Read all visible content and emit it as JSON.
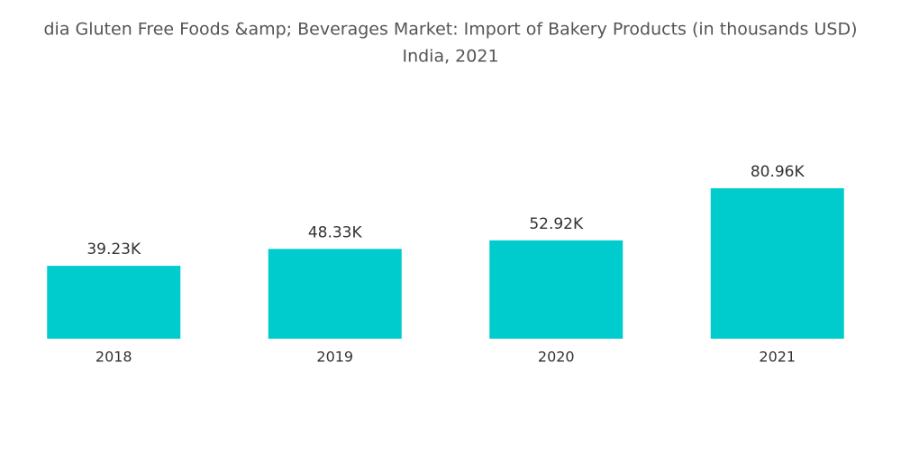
{
  "chart_data": {
    "type": "bar",
    "title": "dia Gluten Free Foods &amp; Beverages Market: Import of Bakery Products (in thousands USD)",
    "subtitle": "India, 2021",
    "categories": [
      "2018",
      "2019",
      "2020",
      "2021"
    ],
    "values": [
      39230,
      48330,
      52920,
      80960
    ],
    "value_labels": [
      "39.23K",
      "48.33K",
      "52.92K",
      "80.96K"
    ],
    "color": "#00cccd"
  }
}
